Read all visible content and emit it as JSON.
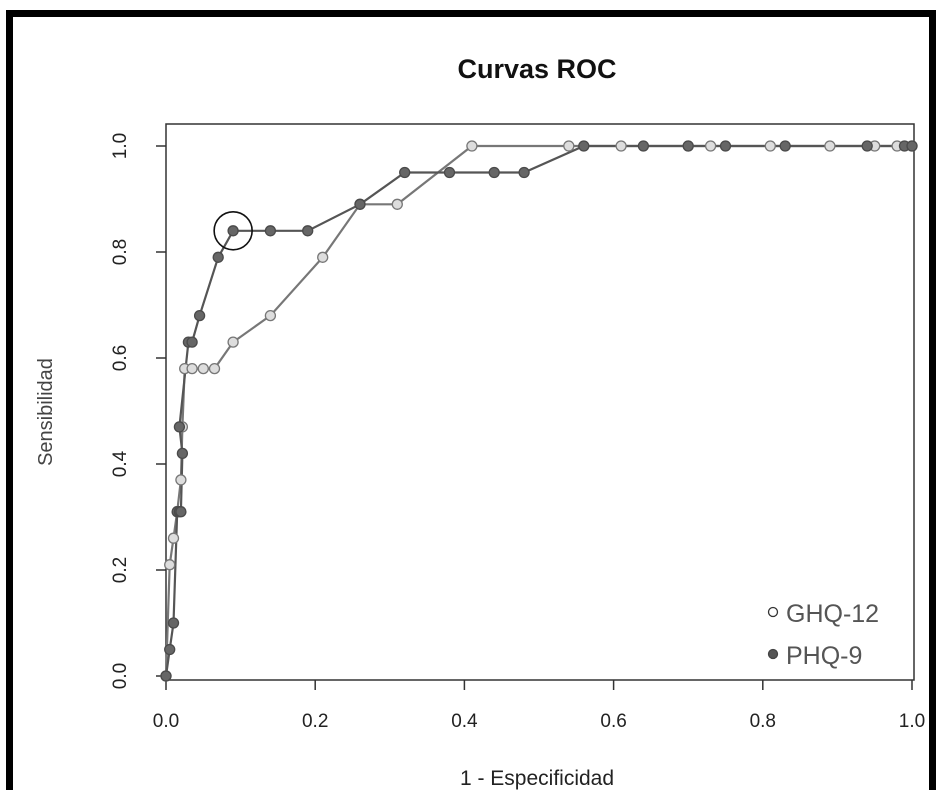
{
  "chart_data": {
    "type": "line",
    "title": "Curvas ROC",
    "xlabel": "1 - Especificidad",
    "ylabel": "Sensibilidad",
    "xlim": [
      0,
      1
    ],
    "ylim": [
      0,
      1
    ],
    "x_ticks": [
      "0.0",
      "0.2",
      "0.4",
      "0.6",
      "0.8",
      "1.0"
    ],
    "y_ticks": [
      "0.0",
      "0.2",
      "0.4",
      "0.6",
      "0.8",
      "1.0"
    ],
    "grid": false,
    "legend_position": "bottom-right",
    "series": [
      {
        "name": "GHQ-12",
        "marker": "open-circle",
        "color": "#888888",
        "x": [
          0.0,
          0.005,
          0.01,
          0.015,
          0.02,
          0.022,
          0.025,
          0.035,
          0.05,
          0.065,
          0.09,
          0.14,
          0.21,
          0.26,
          0.31,
          0.41,
          0.54,
          0.61,
          0.7,
          0.73,
          0.81,
          0.89,
          0.95,
          0.98,
          1.0
        ],
        "y": [
          0.0,
          0.21,
          0.26,
          0.31,
          0.37,
          0.47,
          0.58,
          0.58,
          0.58,
          0.58,
          0.63,
          0.68,
          0.79,
          0.89,
          0.89,
          1.0,
          1.0,
          1.0,
          1.0,
          1.0,
          1.0,
          1.0,
          1.0,
          1.0,
          1.0
        ]
      },
      {
        "name": "PHQ-9",
        "marker": "filled-circle",
        "color": "#666666",
        "x": [
          0.0,
          0.005,
          0.01,
          0.015,
          0.018,
          0.02,
          0.022,
          0.018,
          0.03,
          0.035,
          0.045,
          0.07,
          0.09,
          0.14,
          0.19,
          0.26,
          0.32,
          0.38,
          0.44,
          0.48,
          0.56,
          0.64,
          0.7,
          0.75,
          0.83,
          0.94,
          0.99,
          1.0
        ],
        "y": [
          0.0,
          0.05,
          0.1,
          0.31,
          0.31,
          0.31,
          0.42,
          0.47,
          0.63,
          0.63,
          0.68,
          0.79,
          0.84,
          0.84,
          0.84,
          0.89,
          0.95,
          0.95,
          0.95,
          0.95,
          1.0,
          1.0,
          1.0,
          1.0,
          1.0,
          1.0,
          1.0,
          1.0
        ]
      }
    ],
    "highlight": {
      "series": "PHQ-9",
      "x": 0.09,
      "y": 0.84
    }
  }
}
